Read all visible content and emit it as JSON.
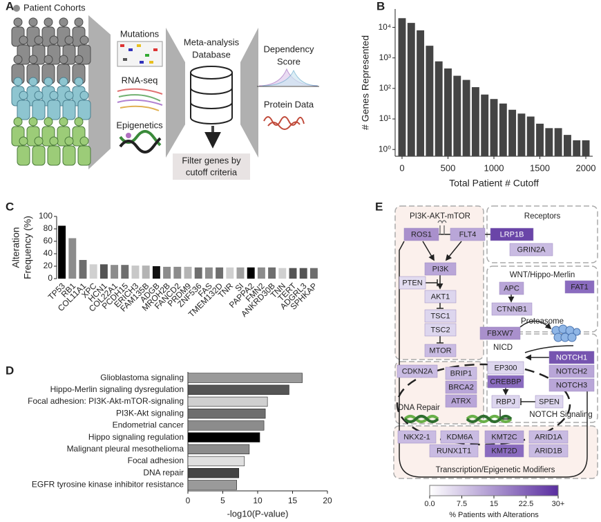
{
  "panel_labels": [
    "A",
    "B",
    "C",
    "D",
    "E"
  ],
  "schematic": {
    "cohorts": "Patient Cohorts",
    "mutations": "Mutations",
    "rnaseq": "RNA-seq",
    "epigenetics": "Epigenetics",
    "database": [
      "Meta-analysis",
      "Database"
    ],
    "dependency": [
      "Dependency",
      "Score"
    ],
    "protein": "Protein Data",
    "filter": [
      "Filter genes by",
      "cutoff criteria"
    ]
  },
  "chart_data": [
    {
      "type": "bar",
      "log": true,
      "ylabel": "# Genes Represented",
      "xlabel": "Total Patient # Cutoff",
      "x": [
        0,
        100,
        200,
        300,
        400,
        500,
        600,
        700,
        800,
        900,
        1000,
        1100,
        1200,
        1300,
        1400,
        1500,
        1600,
        1700,
        1800,
        1900,
        2000
      ],
      "values": [
        20000,
        14000,
        8000,
        2500,
        770,
        450,
        260,
        190,
        110,
        63,
        45,
        32,
        20,
        15,
        12,
        7,
        5,
        5,
        3,
        2,
        2
      ],
      "color": "#444444",
      "xlim": [
        -75,
        2075
      ],
      "xticks": [
        0,
        500,
        1000,
        1500,
        2000
      ],
      "ylim": [
        0.6,
        40000
      ],
      "yticks": [
        {
          "value": 1,
          "label": "10⁰"
        },
        {
          "value": 10,
          "label": "10¹"
        },
        {
          "value": 100,
          "label": "10²"
        },
        {
          "value": 1000,
          "label": "10³"
        },
        {
          "value": 10000,
          "label": "10⁴"
        }
      ]
    },
    {
      "type": "bar",
      "ylabel": [
        "Alteration",
        "Frequency (%)"
      ],
      "categories": [
        "TP53",
        "RB1",
        "COL11A1",
        "XPC",
        "HCN1",
        "COL22A1",
        "PCDH15",
        "ERICH3",
        "FAM135B",
        "ADGB",
        "MROH2B",
        "FANCD2",
        "PRDM9",
        "ZNF536",
        "FAS",
        "TMEM132D",
        "TNR",
        "SI",
        "PAPPA2",
        "FMN2",
        "ANKRD30B",
        "TNN",
        "TERT",
        "ADGRL3",
        "SPHKAP"
      ],
      "values": [
        85,
        65,
        30,
        23,
        23,
        22,
        22,
        21,
        21,
        20,
        19,
        19,
        19,
        18,
        18,
        18,
        18,
        18,
        18,
        18,
        18,
        17,
        17,
        17,
        17
      ],
      "colors": [
        "#000000",
        "#8c8c8c",
        "#6e6e6e",
        "#d0d0d0",
        "#555555",
        "#8c8c8c",
        "#6e6e6e",
        "#c8c8c8",
        "#b4b4b4",
        "#111111",
        "#8c8c8c",
        "#8c8c8c",
        "#b4b4b4",
        "#6e6e6e",
        "#8c8c8c",
        "#6e6e6e",
        "#d0d0d0",
        "#a0a0a0",
        "#000000",
        "#8c8c8c",
        "#6e6e6e",
        "#d0d0d0",
        "#555555",
        "#555555",
        "#6e6e6e"
      ],
      "ylim": [
        0,
        100
      ],
      "yticks": [
        0,
        20,
        40,
        60,
        80,
        100
      ]
    },
    {
      "type": "barh",
      "xlabel": "-log10(P-value)",
      "categories": [
        "Glioblastoma signaling",
        "Hippo-Merlin signaling dysregulation",
        "Focal adhesion: PI3K-Akt-mTOR-signaling",
        "PI3K-Akt signaling",
        "Endometrial cancer",
        "Hippo signaling regulation",
        "Malignant pleural mesothelioma",
        "Focal adhesion",
        "DNA repair",
        "EGFR tyrosine kinase inhibitor resistance"
      ],
      "values": [
        16.4,
        14.5,
        11.4,
        11.1,
        10.9,
        10.3,
        8.8,
        8.1,
        7.3,
        7.0
      ],
      "colors": [
        "#9a9a9a",
        "#555555",
        "#d0d0d0",
        "#6e6e6e",
        "#8c8c8c",
        "#000000",
        "#8c8c8c",
        "#e0e0e0",
        "#444444",
        "#9a9a9a"
      ],
      "xlim": [
        0,
        20
      ],
      "xticks": [
        0,
        5,
        10,
        15,
        20
      ]
    }
  ],
  "pathway": {
    "groups": [
      "PI3K-AKT-mTOR",
      "Receptors",
      "WNT/Hippo-Merlin",
      "Proteasome",
      "NICD",
      "DNA Repair",
      "NOTCH Signaling",
      "Transcription/Epigenetic Modifiers"
    ],
    "nodes": [
      {
        "label": "ROS1",
        "color": "#a990cc"
      },
      {
        "label": "FLT4",
        "color": "#b9a6d8"
      },
      {
        "label": "LRP1B",
        "color": "#6a45a8"
      },
      {
        "label": "GRIN2A",
        "color": "#c9bbe2"
      },
      {
        "label": "PI3K",
        "color": "#b9a6d8"
      },
      {
        "label": "PTEN",
        "color": "#e2dcf0"
      },
      {
        "label": "AKT1",
        "color": "#ddd6ee"
      },
      {
        "label": "TSC1",
        "color": "#ddd6ee"
      },
      {
        "label": "TSC2",
        "color": "#ddd6ee"
      },
      {
        "label": "MTOR",
        "color": "#c9bbe2"
      },
      {
        "label": "APC",
        "color": "#b9a6d8"
      },
      {
        "label": "FAT1",
        "color": "#8a6bbf"
      },
      {
        "label": "CTNNB1",
        "color": "#c9bbe2"
      },
      {
        "label": "FBXW7",
        "color": "#a990cc"
      },
      {
        "label": "NOTCH1",
        "color": "#7654b0"
      },
      {
        "label": "NOTCH2",
        "color": "#b9a6d8"
      },
      {
        "label": "NOTCH3",
        "color": "#b9a6d8"
      },
      {
        "label": "EP300",
        "color": "#ddd6ee"
      },
      {
        "label": "CREBBP",
        "color": "#8a6bbf"
      },
      {
        "label": "CDKN2A",
        "color": "#c9bbe2"
      },
      {
        "label": "BRIP1",
        "color": "#c9bbe2"
      },
      {
        "label": "BRCA2",
        "color": "#b9a6d8"
      },
      {
        "label": "ATRX",
        "color": "#b9a6d8"
      },
      {
        "label": "RBPJ",
        "color": "#ddd6ee"
      },
      {
        "label": "SPEN",
        "color": "#ddd6ee"
      },
      {
        "label": "NKX2-1",
        "color": "#c9bbe2"
      },
      {
        "label": "KDM6A",
        "color": "#c9bbe2"
      },
      {
        "label": "KMT2C",
        "color": "#b9a6d8"
      },
      {
        "label": "ARID1A",
        "color": "#c9bbe2"
      },
      {
        "label": "RUNX1T1",
        "color": "#c9bbe2"
      },
      {
        "label": "KMT2D",
        "color": "#8a6bbf"
      },
      {
        "label": "ARID1B",
        "color": "#c9bbe2"
      }
    ],
    "colorbar": {
      "title": "% Patients with Alterations",
      "colors": [
        "#ffffff",
        "#5a2ea0"
      ],
      "lim": [
        0,
        30
      ],
      "ticks": [
        {
          "value": 0,
          "label": "0.0"
        },
        7.5,
        15,
        22.5,
        {
          "value": 30,
          "label": "30+"
        }
      ]
    }
  }
}
